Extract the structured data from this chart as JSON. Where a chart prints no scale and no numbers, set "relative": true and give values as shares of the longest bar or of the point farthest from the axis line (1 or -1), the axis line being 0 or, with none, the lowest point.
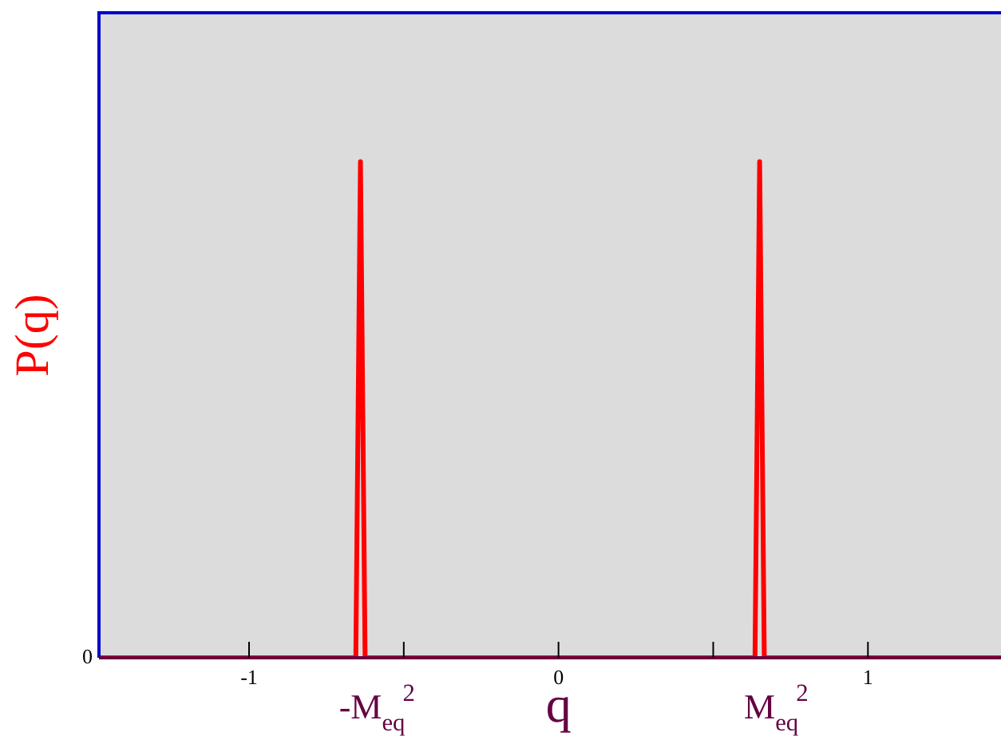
{
  "chart_data": {
    "type": "line",
    "xlabel": "q",
    "ylabel": "P(q)",
    "relative": true,
    "x": [
      -1.485,
      -0.655,
      -0.64,
      -0.625,
      0.635,
      0.65,
      0.665,
      1.43
    ],
    "series": [
      {
        "color": "#ff0000",
        "values": [
          0,
          0,
          1,
          0,
          0,
          1,
          0,
          0
        ]
      }
    ],
    "xlim": [
      -1.485,
      1.43
    ],
    "xticks": [
      -1,
      {
        "value": -0.5,
        "label": null
      },
      0,
      {
        "value": 0.5,
        "label": null
      },
      1
    ],
    "annotations": [
      "0",
      {
        "text": "-M$_{eq}$$^{2}$",
        "x": -0.64,
        "y": 0
      },
      {
        "text": "M$_{eq}$$^{2}$",
        "x": 0.65,
        "y": 0
      }
    ],
    "grid": false,
    "legend": false,
    "marker": "none",
    "line_style": "solid"
  }
}
